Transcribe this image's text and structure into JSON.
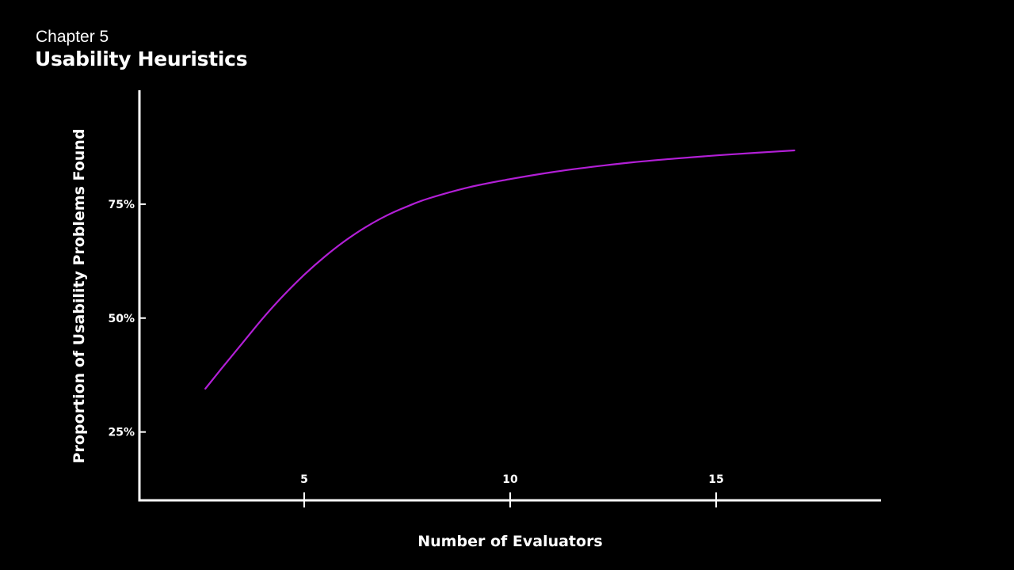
{
  "header": {
    "chapter": "Chapter 5",
    "title": "Usability Heuristics"
  },
  "chart_data": {
    "type": "line",
    "xlabel": "Number of Evaluators",
    "ylabel": "Proportion of Usability Problems Found",
    "xlim": [
      1,
      19
    ],
    "ylim": [
      0.1,
      1.0
    ],
    "x_ticks": [
      5,
      10,
      15
    ],
    "x_tick_labels": [
      "5",
      "10",
      "15"
    ],
    "y_ticks": [
      0.25,
      0.5,
      0.75
    ],
    "y_tick_labels": [
      "25%",
      "50%",
      "75%"
    ],
    "grid": false,
    "series": [
      {
        "color": "#b21fd6",
        "x": [
          2.6,
          3,
          3.5,
          4,
          4.5,
          5,
          5.5,
          6,
          6.5,
          7,
          7.5,
          8,
          9,
          10,
          11,
          12,
          13,
          14,
          15,
          16,
          16.9
        ],
        "y": [
          0.345,
          0.39,
          0.445,
          0.5,
          0.55,
          0.595,
          0.635,
          0.67,
          0.7,
          0.725,
          0.745,
          0.762,
          0.787,
          0.805,
          0.82,
          0.832,
          0.842,
          0.85,
          0.857,
          0.863,
          0.868
        ]
      }
    ]
  }
}
